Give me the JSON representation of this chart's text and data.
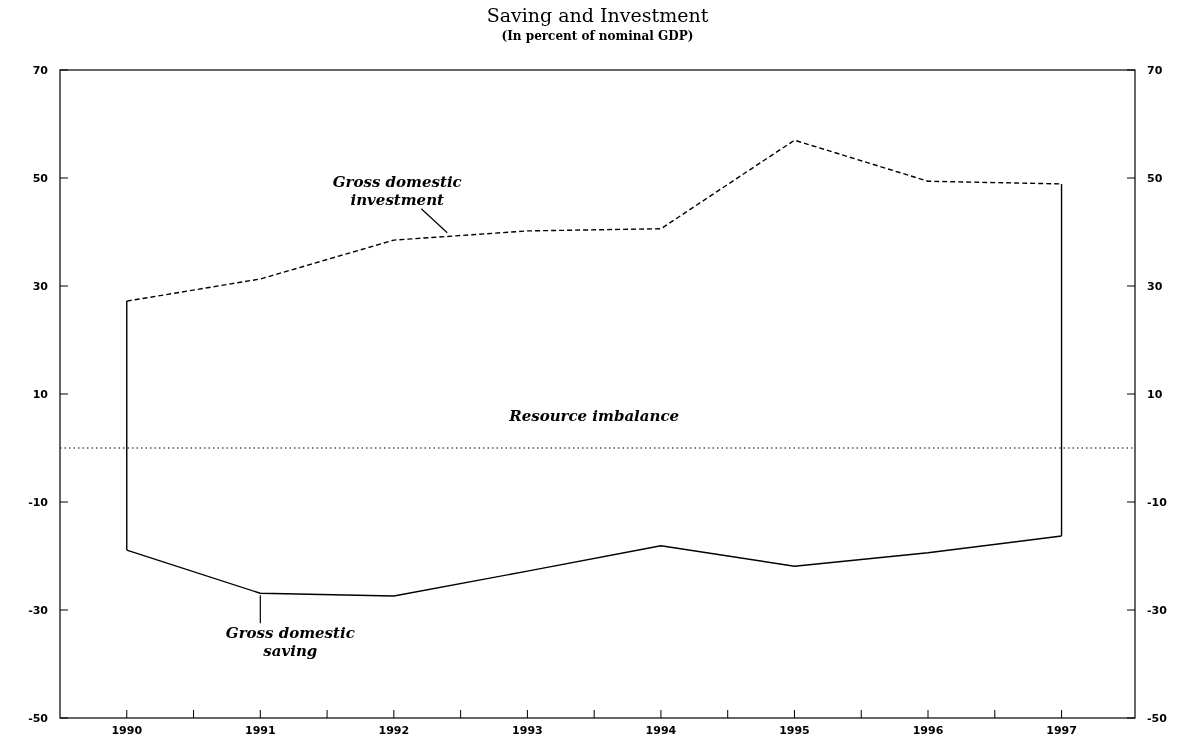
{
  "chart_data": {
    "type": "line",
    "title": "Saving and Investment",
    "subtitle": "(In percent of nominal GDP)",
    "x": [
      1990,
      1991,
      1992,
      1993,
      1994,
      1995,
      1996,
      1997
    ],
    "xlim": [
      1989.5,
      1997.55
    ],
    "xticks": [
      1990,
      {
        "value": 1990.5,
        "label": null
      },
      1991,
      {
        "value": 1991.5,
        "label": null
      },
      1992,
      {
        "value": 1992.5,
        "label": null
      },
      1993,
      {
        "value": 1993.5,
        "label": null
      },
      1994,
      {
        "value": 1994.5,
        "label": null
      },
      1995,
      {
        "value": 1995.5,
        "label": null
      },
      1996,
      {
        "value": 1996.5,
        "label": null
      },
      1997
    ],
    "ylim": [
      -50,
      70
    ],
    "yticks": [
      -50,
      -30,
      -10,
      10,
      30,
      50,
      70
    ],
    "y2lim": [
      -50,
      70
    ],
    "y2ticks": [
      -50,
      -30,
      -10,
      10,
      30,
      50,
      70
    ],
    "series": [
      {
        "color": "#000000",
        "line_style": "dashed",
        "values": [
          27.2,
          31.3,
          38.5,
          40.2,
          40.6,
          57.0,
          49.4,
          48.9
        ]
      },
      {
        "color": "#000000",
        "line_style": "solid",
        "values": [
          -18.9,
          -26.9,
          -27.4,
          -22.8,
          -18.1,
          -21.9,
          -19.4,
          -16.3
        ]
      }
    ],
    "ref_lines": [
      {
        "axis": "y",
        "value": 0,
        "line_style": "dotted",
        "color": "#000000"
      }
    ],
    "annotations": [
      {
        "text": "Gross domestic investment",
        "x": 1992.4,
        "y": 39.5
      },
      {
        "text": "Gross domestic saving",
        "x": 1991,
        "y": -26.9
      },
      "Resource imbalance"
    ]
  }
}
